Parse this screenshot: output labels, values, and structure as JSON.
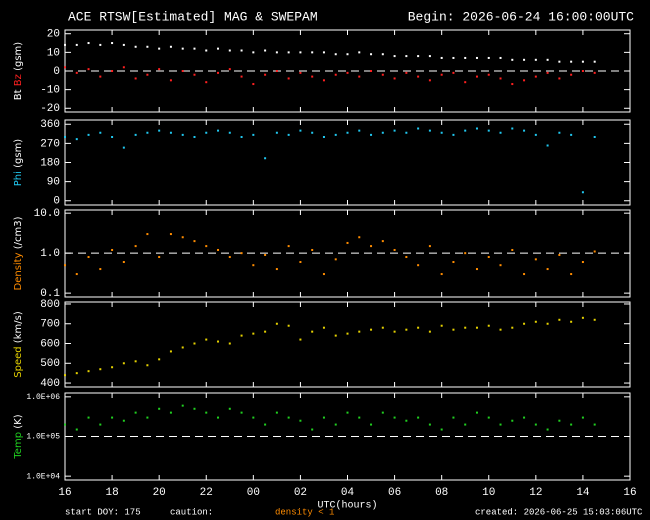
{
  "header": {
    "title": "ACE RTSW[Estimated] MAG & SWEPAM",
    "begin": "Begin: 2026-06-24 16:00:00UTC"
  },
  "footer": {
    "start": "start DOY: 175",
    "caution": "caution:",
    "note": "density < 1",
    "created": "created: 2026-06-25 15:03:06UTC"
  },
  "chart_data": [
    {
      "type": "scatter",
      "y_unit": "(gsm)",
      "ylim": [
        -22,
        22
      ],
      "yticks": [
        20,
        10,
        0,
        -10,
        -20
      ],
      "reference_line": 0,
      "x": [
        16,
        16.5,
        17,
        17.5,
        18,
        18.5,
        19,
        19.5,
        20,
        20.5,
        21,
        21.5,
        22,
        22.5,
        23,
        23.5,
        24,
        24.5,
        25,
        25.5,
        26,
        26.5,
        27,
        27.5,
        28,
        28.5,
        29,
        29.5,
        30,
        30.5,
        31,
        31.5,
        32,
        32.5,
        33,
        33.5,
        34,
        34.5,
        35,
        35.5,
        36,
        36.5,
        37,
        37.5,
        38,
        38.5
      ],
      "series": [
        {
          "name": "Bt",
          "color": "#ffffff",
          "values": [
            14,
            14,
            15,
            14,
            15,
            14,
            13,
            13,
            12,
            13,
            12,
            12,
            11,
            12,
            11,
            11,
            10,
            11,
            10,
            10,
            10,
            10,
            10,
            9,
            9,
            10,
            9,
            9,
            8,
            8,
            8,
            8,
            7,
            7,
            7,
            7,
            7,
            7,
            6,
            6,
            6,
            6,
            5,
            5,
            5,
            5
          ]
        },
        {
          "name": "Bz",
          "color": "#ff2020",
          "values": [
            2,
            -1,
            1,
            -3,
            0,
            2,
            -4,
            -2,
            1,
            -5,
            0,
            -2,
            -6,
            -1,
            1,
            -3,
            -7,
            -2,
            0,
            -4,
            -1,
            -3,
            -5,
            -2,
            -1,
            -3,
            0,
            -2,
            -4,
            -1,
            -3,
            -5,
            -2,
            -1,
            -6,
            -3,
            -2,
            -4,
            -7,
            -5,
            -3,
            -1,
            -4,
            -2,
            0,
            -1
          ]
        }
      ]
    },
    {
      "type": "scatter",
      "y_unit": "(gsm)",
      "ylim": [
        -20,
        380
      ],
      "yticks": [
        360,
        270,
        180,
        90,
        0
      ],
      "x": [
        16,
        16.5,
        17,
        17.5,
        18,
        18.5,
        19,
        19.5,
        20,
        20.5,
        21,
        21.5,
        22,
        22.5,
        23,
        23.5,
        24,
        24.5,
        25,
        25.5,
        26,
        26.5,
        27,
        27.5,
        28,
        28.5,
        29,
        29.5,
        30,
        30.5,
        31,
        31.5,
        32,
        32.5,
        33,
        33.5,
        34,
        34.5,
        35,
        35.5,
        36,
        36.5,
        37,
        37.5,
        38,
        38.5
      ],
      "series": [
        {
          "name": "Phi",
          "color": "#20c8f0",
          "values": [
            300,
            290,
            310,
            320,
            300,
            250,
            310,
            320,
            330,
            320,
            310,
            300,
            320,
            330,
            320,
            300,
            310,
            200,
            320,
            310,
            330,
            320,
            300,
            310,
            320,
            330,
            310,
            320,
            330,
            320,
            340,
            330,
            320,
            310,
            330,
            340,
            330,
            320,
            340,
            330,
            310,
            260,
            320,
            310,
            40,
            300
          ]
        }
      ]
    },
    {
      "type": "scatter",
      "y_unit": "(/cm3)",
      "log_scale": true,
      "ylim": [
        0.08,
        12
      ],
      "yticks": [
        {
          "value": 10,
          "label": "10.0"
        },
        {
          "value": 1,
          "label": "1.0"
        },
        0.1
      ],
      "reference_line": 1,
      "x": [
        16,
        16.5,
        17,
        17.5,
        18,
        18.5,
        19,
        19.5,
        20,
        20.5,
        21,
        21.5,
        22,
        22.5,
        23,
        23.5,
        24,
        24.5,
        25,
        25.5,
        26,
        26.5,
        27,
        27.5,
        28,
        28.5,
        29,
        29.5,
        30,
        30.5,
        31,
        31.5,
        32,
        32.5,
        33,
        33.5,
        34,
        34.5,
        35,
        35.5,
        36,
        36.5,
        37,
        37.5,
        38,
        38.5
      ],
      "series": [
        {
          "name": "Density",
          "color": "#ff8c00",
          "values": [
            0.5,
            0.3,
            0.8,
            0.4,
            1.2,
            0.6,
            1.5,
            3,
            0.8,
            3,
            2.5,
            2,
            1.5,
            1.2,
            0.8,
            1,
            0.5,
            0.9,
            0.4,
            1.5,
            0.6,
            1.2,
            0.3,
            0.7,
            1.8,
            2.5,
            1.5,
            2,
            1.2,
            0.8,
            0.5,
            1.5,
            0.3,
            0.6,
            1,
            0.4,
            0.8,
            0.5,
            1.2,
            0.3,
            0.7,
            0.4,
            0.9,
            0.3,
            0.6,
            1.1
          ]
        }
      ]
    },
    {
      "type": "scatter",
      "y_unit": "(km/s)",
      "ylim": [
        380,
        810
      ],
      "yticks": [
        800,
        700,
        600,
        500,
        400
      ],
      "x": [
        16,
        16.5,
        17,
        17.5,
        18,
        18.5,
        19,
        19.5,
        20,
        20.5,
        21,
        21.5,
        22,
        22.5,
        23,
        23.5,
        24,
        24.5,
        25,
        25.5,
        26,
        26.5,
        27,
        27.5,
        28,
        28.5,
        29,
        29.5,
        30,
        30.5,
        31,
        31.5,
        32,
        32.5,
        33,
        33.5,
        34,
        34.5,
        35,
        35.5,
        36,
        36.5,
        37,
        37.5,
        38,
        38.5
      ],
      "series": [
        {
          "name": "Speed",
          "color": "#e6d200",
          "values": [
            440,
            450,
            460,
            470,
            480,
            500,
            510,
            490,
            520,
            560,
            580,
            600,
            620,
            610,
            600,
            640,
            650,
            660,
            700,
            690,
            620,
            660,
            680,
            640,
            650,
            660,
            670,
            680,
            660,
            670,
            680,
            660,
            690,
            670,
            680,
            680,
            690,
            670,
            680,
            700,
            710,
            700,
            720,
            710,
            730,
            720
          ]
        }
      ]
    },
    {
      "type": "scatter",
      "y_unit": "(K)",
      "log_scale": true,
      "ylim": [
        8000,
        1250000
      ],
      "yticks": [
        {
          "value": 1000000,
          "label": "1.0E+06"
        },
        {
          "value": 100000,
          "label": "1.0E+05"
        },
        {
          "value": 10000,
          "label": "1.0E+04"
        }
      ],
      "reference_line": 100000,
      "x": [
        16,
        16.5,
        17,
        17.5,
        18,
        18.5,
        19,
        19.5,
        20,
        20.5,
        21,
        21.5,
        22,
        22.5,
        23,
        23.5,
        24,
        24.5,
        25,
        25.5,
        26,
        26.5,
        27,
        27.5,
        28,
        28.5,
        29,
        29.5,
        30,
        30.5,
        31,
        31.5,
        32,
        32.5,
        33,
        33.5,
        34,
        34.5,
        35,
        35.5,
        36,
        36.5,
        37,
        37.5,
        38,
        38.5
      ],
      "series": [
        {
          "name": "Temp",
          "color": "#20d020",
          "values": [
            200000,
            150000,
            300000,
            200000,
            300000,
            250000,
            400000,
            300000,
            500000,
            400000,
            600000,
            500000,
            400000,
            300000,
            500000,
            400000,
            300000,
            200000,
            400000,
            300000,
            250000,
            150000,
            300000,
            200000,
            400000,
            300000,
            200000,
            400000,
            300000,
            250000,
            300000,
            200000,
            150000,
            300000,
            200000,
            400000,
            300000,
            200000,
            250000,
            300000,
            200000,
            150000,
            250000,
            200000,
            300000,
            200000
          ]
        }
      ],
      "xlim": [
        16,
        40
      ],
      "xlabel": "UTC(hours)",
      "xticks": [
        16,
        18,
        20,
        22,
        {
          "value": 24,
          "label": "00"
        },
        {
          "value": 26,
          "label": "02"
        },
        {
          "value": 28,
          "label": "04"
        },
        {
          "value": 30,
          "label": "06"
        },
        {
          "value": 32,
          "label": "08"
        },
        {
          "value": 34,
          "label": "10"
        },
        {
          "value": 36,
          "label": "12"
        },
        {
          "value": 38,
          "label": "14"
        },
        {
          "value": 40,
          "label": "16"
        }
      ]
    }
  ]
}
